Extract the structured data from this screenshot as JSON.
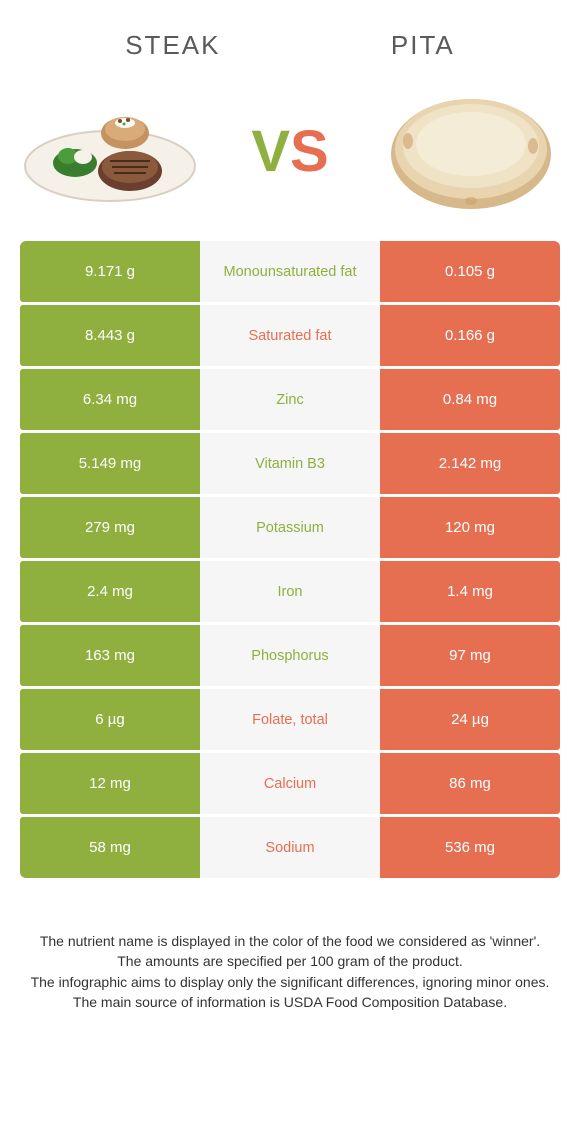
{
  "header": {
    "left": "STEAK",
    "right": "PITA"
  },
  "vs": {
    "v": "V",
    "s": "S"
  },
  "colors": {
    "green": "#8fb03e",
    "orange": "#e76f51",
    "mid_bg": "#f6f6f6",
    "text": "#333333"
  },
  "table": {
    "rows": [
      {
        "left": "9.171 g",
        "mid": "Monounsaturated fat",
        "right": "0.105 g",
        "winner": "left"
      },
      {
        "left": "8.443 g",
        "mid": "Saturated fat",
        "right": "0.166 g",
        "winner": "right"
      },
      {
        "left": "6.34 mg",
        "mid": "Zinc",
        "right": "0.84 mg",
        "winner": "left"
      },
      {
        "left": "5.149 mg",
        "mid": "Vitamin B3",
        "right": "2.142 mg",
        "winner": "left"
      },
      {
        "left": "279 mg",
        "mid": "Potassium",
        "right": "120 mg",
        "winner": "left"
      },
      {
        "left": "2.4 mg",
        "mid": "Iron",
        "right": "1.4 mg",
        "winner": "left"
      },
      {
        "left": "163 mg",
        "mid": "Phosphorus",
        "right": "97 mg",
        "winner": "left"
      },
      {
        "left": "6 µg",
        "mid": "Folate, total",
        "right": "24 µg",
        "winner": "right"
      },
      {
        "left": "12 mg",
        "mid": "Calcium",
        "right": "86 mg",
        "winner": "right"
      },
      {
        "left": "58 mg",
        "mid": "Sodium",
        "right": "536 mg",
        "winner": "right"
      }
    ]
  },
  "footer": {
    "line1": "The nutrient name is displayed in the color of the food we considered as 'winner'.",
    "line2": "The amounts are specified per 100 gram of the product.",
    "line3": "The infographic aims to display only the significant differences, ignoring minor ones.",
    "line4": "The main source of information is USDA Food Composition Database."
  }
}
